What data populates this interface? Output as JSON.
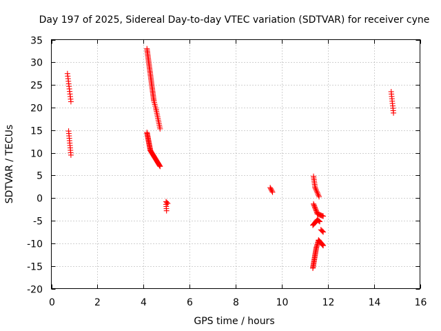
{
  "chart_data": {
    "type": "scatter",
    "title": "Day 197 of 2025, Sidereal Day-to-day VTEC variation (SDTVAR) for receiver cyne",
    "xlabel": "GPS time / hours",
    "ylabel": "SDTVAR / TECUs",
    "xlim": [
      0,
      16
    ],
    "ylim": [
      -20,
      35
    ],
    "xticks": [
      0,
      2,
      4,
      6,
      8,
      10,
      12,
      14,
      16
    ],
    "yticks": [
      -20,
      -15,
      -10,
      -5,
      0,
      5,
      10,
      15,
      20,
      25,
      30,
      35
    ],
    "grid": true,
    "marker": "+",
    "color": "#ff0000",
    "series": [
      {
        "name": "SDTVAR",
        "segments": [
          {
            "x0": 0.7,
            "y0": 27.5,
            "x1": 0.85,
            "y1": 21.3,
            "n": 12
          },
          {
            "x0": 0.75,
            "y0": 14.8,
            "x1": 0.85,
            "y1": 9.5,
            "n": 11
          },
          {
            "x0": 4.15,
            "y0": 33.0,
            "x1": 4.45,
            "y1": 21.5,
            "n": 40
          },
          {
            "x0": 4.45,
            "y0": 21.5,
            "x1": 4.55,
            "y1": 19.5,
            "n": 6
          },
          {
            "x0": 4.55,
            "y0": 19.5,
            "x1": 4.72,
            "y1": 15.3,
            "n": 12
          },
          {
            "x0": 4.15,
            "y0": 14.5,
            "x1": 4.3,
            "y1": 10.5,
            "n": 20
          },
          {
            "x0": 4.3,
            "y0": 10.5,
            "x1": 4.72,
            "y1": 7.0,
            "n": 25
          },
          {
            "x0": 4.98,
            "y0": -0.8,
            "x1": 5.05,
            "y1": -1.2,
            "n": 3
          },
          {
            "x0": 4.98,
            "y0": -1.4,
            "x1": 5.0,
            "y1": -2.8,
            "n": 4
          },
          {
            "x0": 9.5,
            "y0": 2.3,
            "x1": 9.6,
            "y1": 1.3,
            "n": 5
          },
          {
            "x0": 11.38,
            "y0": 4.8,
            "x1": 11.45,
            "y1": 2.3,
            "n": 8
          },
          {
            "x0": 11.45,
            "y0": 2.3,
            "x1": 11.62,
            "y1": 0.3,
            "n": 8
          },
          {
            "x0": 11.38,
            "y0": -1.3,
            "x1": 11.55,
            "y1": -3.5,
            "n": 10
          },
          {
            "x0": 11.55,
            "y0": -3.5,
            "x1": 11.8,
            "y1": -4.0,
            "n": 8
          },
          {
            "x0": 11.35,
            "y0": -6.0,
            "x1": 11.55,
            "y1": -4.8,
            "n": 8
          },
          {
            "x0": 11.55,
            "y0": -4.8,
            "x1": 11.65,
            "y1": -5.2,
            "n": 4
          },
          {
            "x0": 11.7,
            "y0": -7.0,
            "x1": 11.8,
            "y1": -7.5,
            "n": 4
          },
          {
            "x0": 11.35,
            "y0": -15.5,
            "x1": 11.5,
            "y1": -11.0,
            "n": 20
          },
          {
            "x0": 11.5,
            "y0": -11.0,
            "x1": 11.6,
            "y1": -9.3,
            "n": 8
          },
          {
            "x0": 11.6,
            "y0": -9.3,
            "x1": 11.8,
            "y1": -10.5,
            "n": 10
          },
          {
            "x0": 14.75,
            "y0": 23.5,
            "x1": 14.85,
            "y1": 18.8,
            "n": 10
          }
        ]
      }
    ]
  }
}
